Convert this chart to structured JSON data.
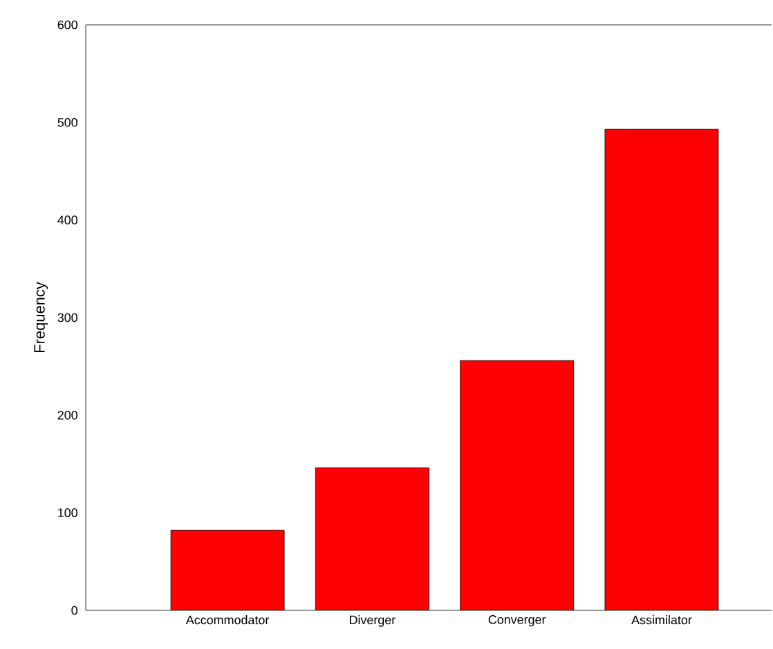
{
  "chart_data": {
    "type": "bar",
    "ylabel": "Frequency",
    "categories": [
      "Accommodator",
      "Diverger",
      "Converger",
      "Assimilator"
    ],
    "values": [
      82,
      146,
      256,
      493
    ],
    "color": "#ff0000",
    "ylim": [
      0,
      600
    ],
    "yticks": [
      0,
      100,
      200,
      300,
      400,
      500,
      600
    ],
    "grid": false
  }
}
